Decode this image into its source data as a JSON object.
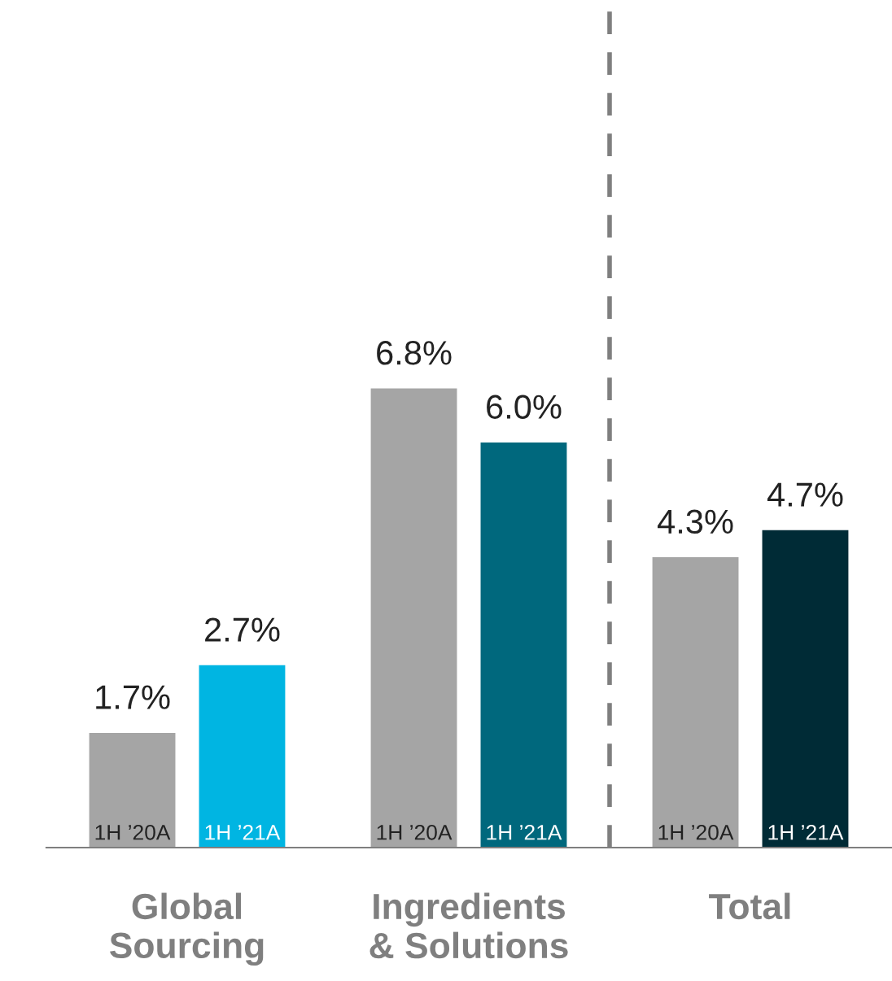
{
  "chart_data": {
    "type": "bar",
    "categories": [
      "Global\nSourcing",
      "Ingredients\n& Solutions",
      "Total"
    ],
    "series": [
      {
        "name": "1H ’20A",
        "colors": [
          "#a5a5a5",
          "#a5a5a5",
          "#a5a5a5"
        ],
        "values": [
          1.7,
          6.8,
          4.3
        ],
        "value_labels": [
          "1.7%",
          "6.8%",
          "4.3%"
        ]
      },
      {
        "name": "1H ’21A",
        "colors": [
          "#00b5e2",
          "#00687d",
          "#002b36"
        ],
        "values": [
          2.7,
          6.0,
          4.7
        ],
        "value_labels": [
          "2.7%",
          "6.0%",
          "4.7%"
        ]
      }
    ],
    "tick_labels": "x",
    "grid": false,
    "legend": false
  }
}
